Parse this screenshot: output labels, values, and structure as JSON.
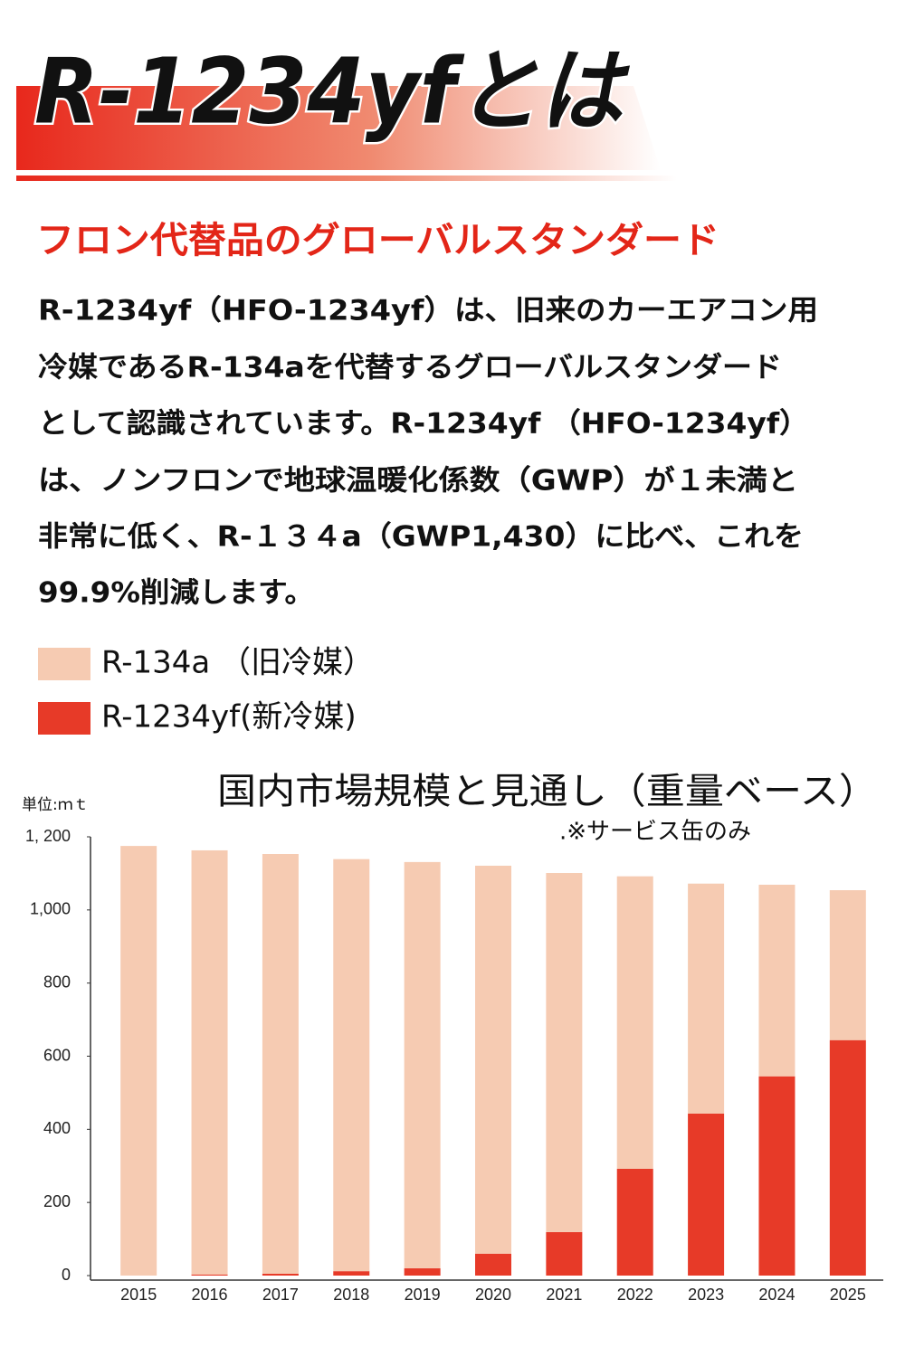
{
  "header": {
    "title": "R-1234yfとは",
    "subtitle": "フロン代替品のグローバルスタンダード"
  },
  "body": {
    "lines": [
      "R-1234yf（HFO-1234yf）は、旧来のカーエアコン用",
      "冷媒であるR-134aを代替するグローバルスタンダード",
      "として認識されています。R-1234yf （HFO-1234yf）",
      "は、ノンフロンで地球温暖化係数（GWP）が１未満と",
      "非常に低く、R-１３４a（GWP1,430）に比べ、これを",
      "99.9%削減します。"
    ]
  },
  "chart_data": {
    "type": "bar",
    "stacked": true,
    "title": "国内市場規模と見通し（重量ベース）",
    "note": ".※サービス缶のみ",
    "ylabel": "単位:ｍｔ",
    "categories": [
      "2015",
      "2016",
      "2017",
      "2018",
      "2019",
      "2020",
      "2021",
      "2022",
      "2023",
      "2024",
      "2025"
    ],
    "series": [
      {
        "name": "R-1234yf(新冷媒)",
        "color": "#e73a28",
        "values": [
          0,
          3,
          5,
          12,
          20,
          60,
          119,
          292,
          443,
          545,
          644
        ]
      },
      {
        "name": "R-134a （旧冷媒）",
        "color": "#f6cbb2",
        "values": [
          1175,
          1160,
          1148,
          1127,
          1111,
          1061,
          982,
          800,
          629,
          524,
          410
        ]
      }
    ],
    "ylim": [
      0,
      1200
    ],
    "yticks": [
      0,
      200,
      400,
      600,
      800,
      {
        "value": 1000,
        "label": "1,000"
      },
      {
        "value": 1200,
        "label": "1, 200"
      }
    ]
  }
}
